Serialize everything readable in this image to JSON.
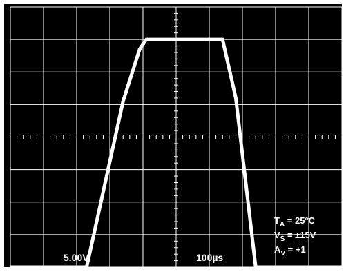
{
  "chart_data": {
    "type": "line",
    "title": "",
    "xlabel": "",
    "ylabel": "",
    "x_divisions": 10,
    "y_divisions": 8,
    "minor_ticks_per_division": 5,
    "xlim": [
      0,
      1000
    ],
    "ylim": [
      -5,
      35
    ],
    "x_unit": "µs",
    "y_unit": "V",
    "grid": true,
    "series": [
      {
        "x": [
          0,
          230,
          340,
          390,
          410,
          640,
          680,
          740,
          1000
        ],
        "y": [
          -5,
          -5,
          20.5,
          28.5,
          30,
          30,
          21,
          -5,
          -5
        ]
      }
    ],
    "scale_labels": {
      "volts_per_div": "5.00V",
      "time_per_div": "100µs"
    },
    "conditions": {
      "ta": {
        "main": "T",
        "sub": "A",
        "rest": " = 25°C"
      },
      "vs": {
        "main": "V",
        "sub": "S",
        "rest": " = ±15V"
      },
      "av": {
        "main": "A",
        "sub": "V",
        "rest": " = +1"
      }
    },
    "colors": {
      "background": "#000000",
      "grid": "#ffffff",
      "trace": "#ffffff",
      "frame": "#ffffff"
    }
  }
}
